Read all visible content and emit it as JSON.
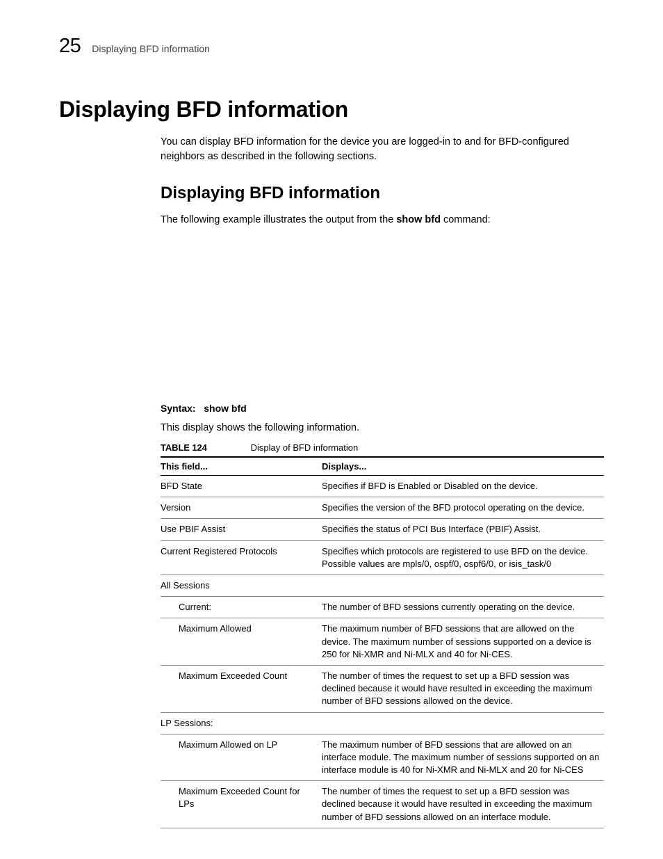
{
  "header": {
    "chapter_number": "25",
    "chapter_title": "Displaying BFD information"
  },
  "title": "Displaying BFD information",
  "intro_para": "You can display BFD information for the device you are logged-in to and for BFD-configured neighbors as described in the following sections.",
  "subsection": {
    "title": "Displaying BFD information",
    "lead_text_pre": "The following example illustrates the output from the ",
    "lead_cmd": "show bfd",
    "lead_text_post": " command:"
  },
  "syntax": {
    "label": "Syntax:",
    "command": "show bfd"
  },
  "preface": "This display shows the following information.",
  "table": {
    "caption_label": "TABLE 124",
    "caption_text": "Display of BFD information",
    "columns": [
      "This field...",
      "Displays..."
    ],
    "rows": [
      {
        "indent": 0,
        "field": "BFD State",
        "desc": "Specifies if BFD is Enabled or Disabled on the device."
      },
      {
        "indent": 0,
        "field": "Version",
        "desc": "Specifies the version of the BFD protocol operating on the device."
      },
      {
        "indent": 0,
        "field": "Use PBIF Assist",
        "desc": "Specifies the status of PCI Bus Interface (PBIF) Assist."
      },
      {
        "indent": 0,
        "field": "Current Registered Protocols",
        "desc": "Specifies which protocols are registered to use BFD on the device. Possible values are mpls/0, ospf/0, ospf6/0, or isis_task/0"
      },
      {
        "indent": 0,
        "field": "All Sessions",
        "desc": ""
      },
      {
        "indent": 1,
        "field": "Current:",
        "desc": "The number of BFD sessions currently operating on the device."
      },
      {
        "indent": 1,
        "field": "Maximum Allowed",
        "desc": "The maximum number of BFD sessions that are allowed on the device. The maximum number of sessions supported on a device is 250 for Ni-XMR and Ni-MLX and 40 for Ni-CES."
      },
      {
        "indent": 1,
        "field": "Maximum Exceeded Count",
        "desc": "The number of times the request to set up a BFD session was declined because it would have resulted in exceeding the maximum number of BFD sessions allowed on the device."
      },
      {
        "indent": 0,
        "field": "LP Sessions:",
        "desc": ""
      },
      {
        "indent": 1,
        "field": "Maximum Allowed on LP",
        "desc": "The maximum number of BFD sessions that are allowed on an interface module. The maximum number of sessions supported on an interface module is 40 for Ni-XMR and Ni-MLX and 20 for Ni-CES"
      },
      {
        "indent": 1,
        "field": "Maximum Exceeded Count for LPs",
        "desc": "The number of times the request to set up a BFD session was declined because it would have resulted in exceeding the maximum number of BFD sessions allowed on an interface module."
      }
    ]
  }
}
